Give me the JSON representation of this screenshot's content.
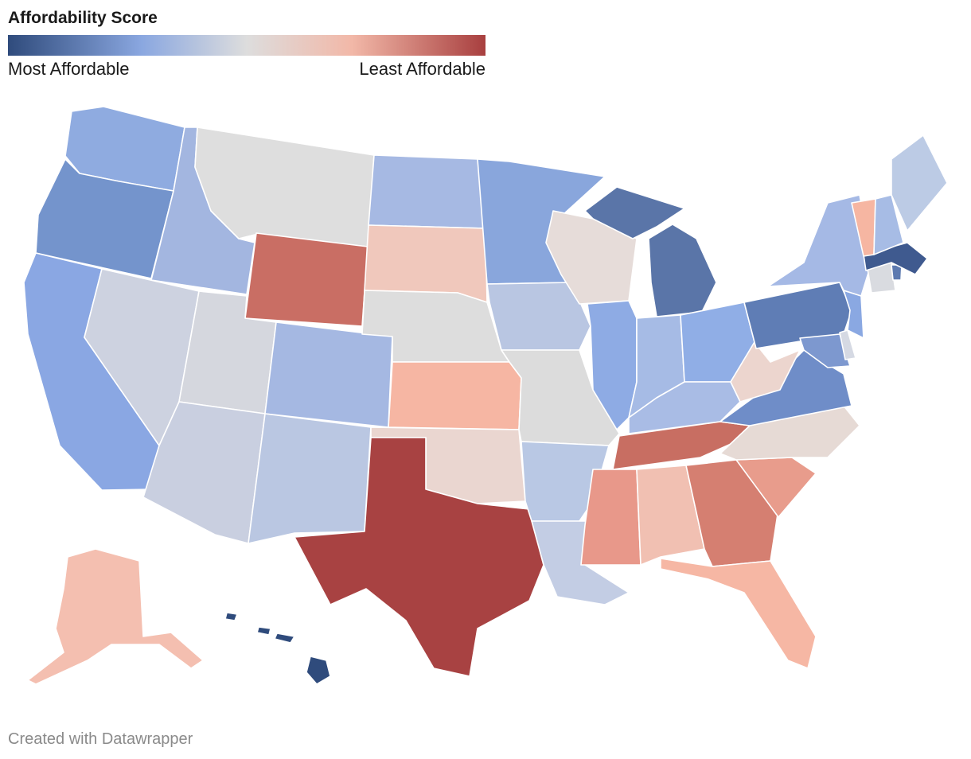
{
  "legend": {
    "title": "Affordability Score",
    "low_label": "Most Affordable",
    "high_label": "Least Affordable"
  },
  "colors": {
    "most_affordable": "#2f4b7c",
    "neutral": "#dddddd",
    "least_affordable": "#a83f3f"
  },
  "states": {
    "WA": "#8fabe0",
    "OR": "#7494cc",
    "CA": "#8aa7e3",
    "ID": "#a3b6e0",
    "NV": "#cdd2e0",
    "MT": "#dedede",
    "WY": "#c96e64",
    "UT": "#d5d7de",
    "AZ": "#c9cfe0",
    "CO": "#a5b8e2",
    "NM": "#bac7e2",
    "ND": "#a6b9e3",
    "SD": "#f0c8bc",
    "NE": "#dddddd",
    "KS": "#f6b6a3",
    "OK": "#ead6d0",
    "TX": "#a84242",
    "MN": "#89a6dc",
    "IA": "#b9c6e2",
    "MO": "#dcdcdc",
    "AR": "#b9c8e4",
    "LA": "#c3cde4",
    "WI": "#e6dcd9",
    "IL": "#8eabe4",
    "MI": "#5a75a8",
    "IN": "#a6bbe5",
    "OH": "#90aee6",
    "KY": "#a9bce5",
    "TN": "#c86e62",
    "MS": "#e8988a",
    "AL": "#f1c0b2",
    "GA": "#d57f71",
    "FL": "#f6b7a4",
    "SC": "#e89c8c",
    "NC": "#e6dad5",
    "VA": "#6f8dc8",
    "WV": "#ecd5ce",
    "PA": "#5f7db5",
    "NY": "#a5b9e5",
    "VT": "#f6b6a2",
    "NH": "#a7bce5",
    "ME": "#bccbe5",
    "MA": "#3f5a8f",
    "CT": "#d9dbe0",
    "RI": "#5d7ab0",
    "NJ": "#8aa8e2",
    "DE": "#d5d9e3",
    "MD": "#7d98cf",
    "AK": "#f4bfb0",
    "HI": "#2f4b7c"
  },
  "footer": "Created with Datawrapper"
}
